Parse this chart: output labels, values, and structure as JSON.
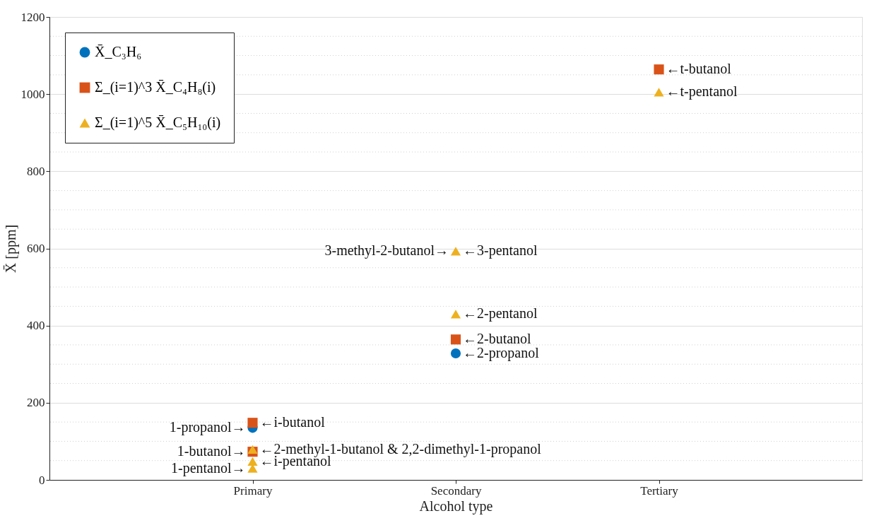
{
  "chart_data": {
    "type": "scatter",
    "xlabel": "Alcohol type",
    "ylabel": "X̄ [ppm]",
    "categories": [
      "Primary",
      "Secondary",
      "Tertiary"
    ],
    "series": [
      {
        "name": "X̄_C₃H₆",
        "color": "#0072bd",
        "marker": "circle",
        "x": [
          "Primary",
          "Secondary"
        ],
        "values": [
          135,
          328
        ]
      },
      {
        "name": "Σ_(i=1)^3 X̄_C₄H₈(i)",
        "color": "#d95319",
        "marker": "square",
        "x": [
          "Primary",
          "Primary",
          "Secondary",
          "Tertiary"
        ],
        "values": [
          148,
          73,
          364,
          1064
        ]
      },
      {
        "name": "Σ_(i=1)^5 X̄_C₅H₁₀(i)",
        "color": "#edb120",
        "marker": "triangle",
        "x": [
          "Primary",
          "Primary",
          "Primary",
          "Secondary",
          "Secondary",
          "Tertiary"
        ],
        "values": [
          79,
          48,
          30,
          430,
          593,
          1005
        ]
      }
    ],
    "ylim": [
      0,
      1200
    ],
    "yticks": [
      0,
      200,
      400,
      600,
      800,
      1000,
      1200
    ],
    "grid": "y",
    "legend": "top left",
    "annotations": [
      {
        "text": "1-propanol→",
        "x": "Primary",
        "y": 135
      },
      {
        "text": "←i-butanol",
        "x": "Primary",
        "y": 148
      },
      {
        "text": "1-butanol→",
        "x": "Primary",
        "y": 73
      },
      {
        "text": "←2-methyl-1-butanol & 2,2-dimethyl-1-propanol",
        "x": "Primary",
        "y": 79
      },
      {
        "text": "←i-pentanol",
        "x": "Primary",
        "y": 48
      },
      {
        "text": "1-pentanol→",
        "x": "Primary",
        "y": 30
      },
      {
        "text": "←2-propanol",
        "x": "Secondary",
        "y": 328
      },
      {
        "text": "←2-butanol",
        "x": "Secondary",
        "y": 364
      },
      {
        "text": "←2-pentanol",
        "x": "Secondary",
        "y": 430
      },
      {
        "text": "←3-pentanol",
        "x": "Secondary",
        "y": 593
      },
      {
        "text": "3-methyl-2-butanol→",
        "x": "Secondary",
        "y": 593
      },
      {
        "text": "←t-butanol",
        "x": "Tertiary",
        "y": 1064
      },
      {
        "text": "←t-pentanol",
        "x": "Tertiary",
        "y": 1005
      }
    ]
  }
}
